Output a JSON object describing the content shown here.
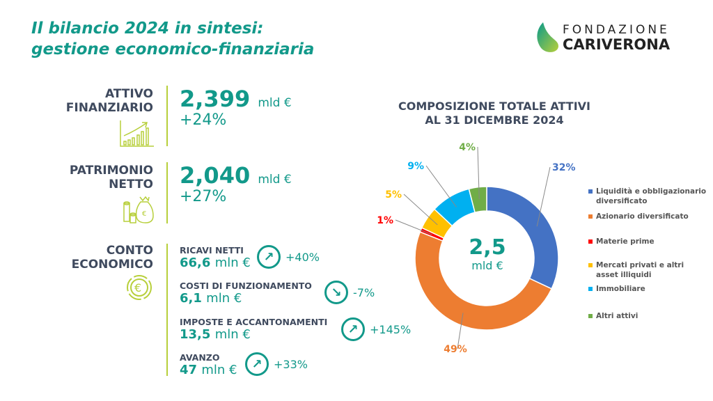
{
  "header": {
    "title_line1": "Il bilancio 2024 in sintesi:",
    "title_line2": "gestione economico-finanziaria",
    "logo_line1": "FONDAZIONE",
    "logo_line2": "CARIVERONA"
  },
  "attivo": {
    "label1": "ATTIVO",
    "label2": "FINANZIARIO",
    "value": "2,399",
    "unit": "mld €",
    "change": "+24%"
  },
  "patrimonio": {
    "label1": "PATRIMONIO",
    "label2": "NETTO",
    "value": "2,040",
    "unit": "mld €",
    "change": "+27%"
  },
  "conto": {
    "label1": "CONTO",
    "label2": "ECONOMICO",
    "items": [
      {
        "label": "RICAVI NETTI",
        "value": "66,6",
        "unit": "mln €",
        "change": "+40%",
        "arrow": "↗"
      },
      {
        "label": "COSTI DI FUNZIONAMENTO",
        "value": "6,1",
        "unit": "mln €",
        "change": "-7%",
        "arrow": "↘"
      },
      {
        "label": "IMPOSTE E ACCANTONAMENTI",
        "value": "13,5",
        "unit": "mln €",
        "change": "+145%",
        "arrow": "↗"
      },
      {
        "label": "AVANZO",
        "value": "47",
        "unit": "mln €",
        "change": "+33%",
        "arrow": "↗"
      }
    ]
  },
  "chart_data": {
    "type": "pie",
    "title_line1": "COMPOSIZIONE TOTALE ATTIVI",
    "title_line2": "AL 31 DICEMBRE 2024",
    "center_value": "2,5",
    "center_unit": "mld €",
    "legend_position": "right",
    "categories": [
      "Liquidità e obbligazionario diversificato",
      "Azionario diversificato",
      "Materie prime",
      "Mercati privati e altri asset illiquidi",
      "Immobiliare",
      "Altri attivi"
    ],
    "values": [
      32,
      49,
      1,
      5,
      9,
      4
    ],
    "labels": [
      "32%",
      "49%",
      "1%",
      "5%",
      "9%",
      "4%"
    ],
    "colors": [
      "#4472c4",
      "#ed7d31",
      "#ff0000",
      "#ffc000",
      "#00b0f0",
      "#70ad47"
    ]
  }
}
